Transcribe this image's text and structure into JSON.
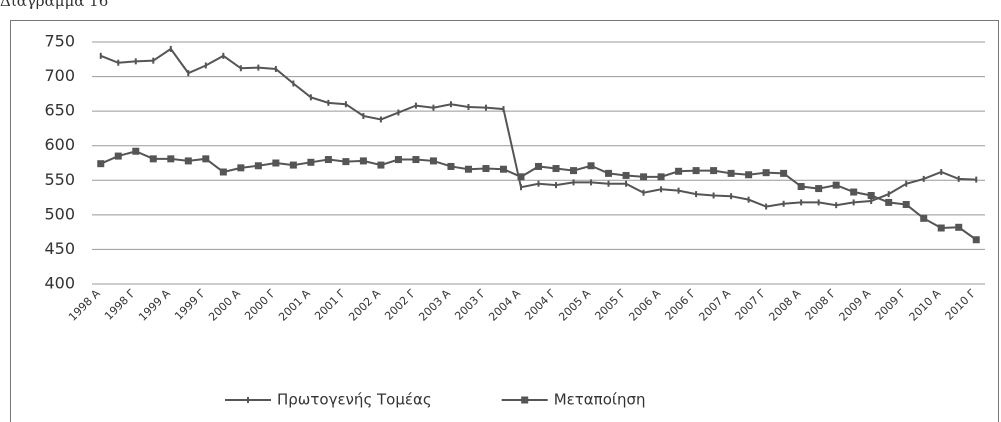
{
  "chart_data": {
    "type": "line",
    "title": "Διάγραμμα 16",
    "categories": [
      "1998 Α",
      null,
      "1998 Γ",
      null,
      "1999 Α",
      null,
      "1999 Γ",
      null,
      "2000 Α",
      null,
      "2000 Γ",
      null,
      "2001 Α",
      null,
      "2001 Γ",
      null,
      "2002 Α",
      null,
      "2002 Γ",
      null,
      "2003 Α",
      null,
      "2003 Γ",
      null,
      "2004 Α",
      null,
      "2004 Γ",
      null,
      "2005 Α",
      null,
      "2005 Γ",
      null,
      "2006 Α",
      null,
      "2006 Γ",
      null,
      "2007 Α",
      null,
      "2007 Γ",
      null,
      "2008 Α",
      null,
      "2008 Γ",
      null,
      "2009 Α",
      null,
      "2009 Γ",
      null,
      "2010 Α",
      null,
      "2010 Γ"
    ],
    "series": [
      {
        "name": "Πρωτογενής Τομέας",
        "color": "#555555",
        "marker": "dash",
        "values": [
          730,
          720,
          722,
          723,
          740,
          705,
          716,
          730,
          712,
          713,
          711,
          690,
          670,
          662,
          660,
          643,
          638,
          648,
          658,
          655,
          660,
          656,
          655,
          653,
          540,
          545,
          543,
          547,
          547,
          545,
          545,
          532,
          537,
          535,
          530,
          528,
          527,
          522,
          512,
          516,
          518,
          518,
          514,
          518,
          520,
          530,
          545,
          552,
          562,
          552,
          551
        ]
      },
      {
        "name": "Μεταποίηση",
        "color": "#555555",
        "marker": "square",
        "values": [
          574,
          585,
          592,
          581,
          581,
          578,
          581,
          562,
          568,
          571,
          575,
          572,
          576,
          580,
          577,
          578,
          572,
          580,
          580,
          578,
          570,
          566,
          567,
          566,
          555,
          570,
          567,
          564,
          571,
          560,
          557,
          555,
          555,
          563,
          564,
          564,
          560,
          558,
          561,
          560,
          541,
          538,
          543,
          533,
          528,
          518,
          515,
          495,
          481,
          482,
          464
        ]
      }
    ],
    "ylim": [
      400,
      750
    ],
    "yticks": [
      400,
      450,
      500,
      550,
      600,
      650,
      700,
      750
    ],
    "grid": true,
    "legend": "bottom"
  }
}
